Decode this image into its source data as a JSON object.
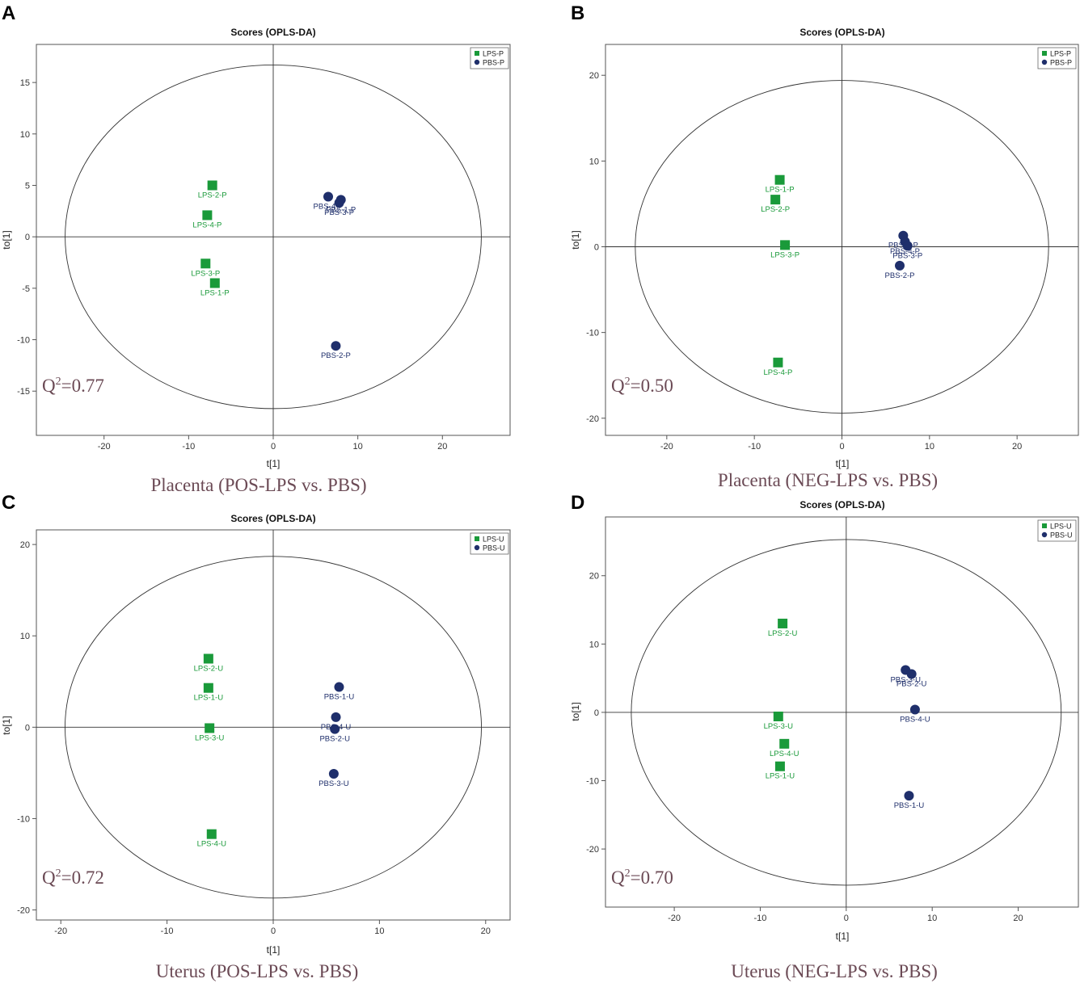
{
  "chart_data": [
    {
      "panel_letter": "A",
      "type": "scatter",
      "title": "Scores (OPLS-DA)",
      "xlabel": "t[1]",
      "ylabel": "to[1]",
      "xlim": [
        -28,
        28
      ],
      "ylim": [
        -19.3,
        18.7
      ],
      "xticks": [
        "-20",
        "-10",
        "0",
        "10",
        "20"
      ],
      "xtick_values": [
        -20,
        -10,
        0,
        10,
        20
      ],
      "yticks": [
        "-15",
        "-10",
        "-5",
        "0",
        "5",
        "10",
        "15"
      ],
      "ytick_values": [
        -15,
        -10,
        -5,
        0,
        5,
        10,
        15
      ],
      "ellipse": {
        "rx": 24.6,
        "ry": 16.7
      },
      "q2_prefix": "Q",
      "q2_sup": "2",
      "q2_value": "=0.77",
      "caption": "Placenta (POS-LPS vs. PBS)",
      "legend_position": "top-right",
      "series": [
        {
          "name": "LPS-P",
          "marker": "square",
          "color": "#1a9a3a",
          "points": [
            {
              "label": "LPS-2-P",
              "x": -7.2,
              "y": 5.0
            },
            {
              "label": "LPS-4-P",
              "x": -7.8,
              "y": 2.1
            },
            {
              "label": "LPS-3-P",
              "x": -8.0,
              "y": -2.6
            },
            {
              "label": "LPS-1-P",
              "x": -6.9,
              "y": -4.5
            }
          ]
        },
        {
          "name": "PBS-P",
          "marker": "circle",
          "color": "#1f2f6b",
          "points": [
            {
              "label": "PBS-4-P",
              "x": 6.5,
              "y": 3.9
            },
            {
              "label": "PBS-1-P",
              "x": 8.0,
              "y": 3.6
            },
            {
              "label": "PBS-3-P",
              "x": 7.8,
              "y": 3.3
            },
            {
              "label": "PBS-2-P",
              "x": 7.4,
              "y": -10.6
            }
          ]
        }
      ]
    },
    {
      "panel_letter": "B",
      "type": "scatter",
      "title": "Scores (OPLS-DA)",
      "xlabel": "t[1]",
      "ylabel": "to[1]",
      "xlim": [
        -27,
        27
      ],
      "ylim": [
        -22.0,
        23.6
      ],
      "xticks": [
        "-20",
        "-10",
        "0",
        "10",
        "20"
      ],
      "xtick_values": [
        -20,
        -10,
        0,
        10,
        20
      ],
      "yticks": [
        "-20",
        "-10",
        "0",
        "10",
        "20"
      ],
      "ytick_values": [
        -20,
        -10,
        0,
        10,
        20
      ],
      "ellipse": {
        "rx": 23.6,
        "ry": 19.4
      },
      "q2_prefix": "Q",
      "q2_sup": "2",
      "q2_value": "=0.50",
      "caption": "Placenta (NEG-LPS vs. PBS)",
      "legend_position": "top-right",
      "series": [
        {
          "name": "LPS-P",
          "marker": "square",
          "color": "#1a9a3a",
          "points": [
            {
              "label": "LPS-1-P",
              "x": -7.1,
              "y": 7.8
            },
            {
              "label": "LPS-2-P",
              "x": -7.6,
              "y": 5.5
            },
            {
              "label": "LPS-3-P",
              "x": -6.5,
              "y": 0.2
            },
            {
              "label": "LPS-4-P",
              "x": -7.3,
              "y": -13.5
            }
          ]
        },
        {
          "name": "PBS-P",
          "marker": "circle",
          "color": "#1f2f6b",
          "points": [
            {
              "label": "PBS-1-P",
              "x": 7.0,
              "y": 1.3
            },
            {
              "label": "PBS-4-P",
              "x": 7.2,
              "y": 0.6
            },
            {
              "label": "PBS-3-P",
              "x": 7.5,
              "y": 0.1
            },
            {
              "label": "PBS-2-P",
              "x": 6.6,
              "y": -2.2
            }
          ]
        }
      ]
    },
    {
      "panel_letter": "C",
      "type": "scatter",
      "title": "Scores (OPLS-DA)",
      "xlabel": "t[1]",
      "ylabel": "to[1]",
      "xlim": [
        -22.3,
        22.3
      ],
      "ylim": [
        -21.1,
        21.6
      ],
      "xticks": [
        "-20",
        "-10",
        "0",
        "10",
        "20"
      ],
      "xtick_values": [
        -20,
        -10,
        0,
        10,
        20
      ],
      "yticks": [
        "-20",
        "-10",
        "0",
        "10",
        "20"
      ],
      "ytick_values": [
        -20,
        -10,
        0,
        10,
        20
      ],
      "ellipse": {
        "rx": 19.6,
        "ry": 18.7
      },
      "q2_prefix": "Q",
      "q2_sup": "2",
      "q2_value": "=0.72",
      "caption": "Uterus (POS-LPS vs. PBS)",
      "legend_position": "top-right",
      "series": [
        {
          "name": "LPS-U",
          "marker": "square",
          "color": "#1a9a3a",
          "points": [
            {
              "label": "LPS-2-U",
              "x": -6.1,
              "y": 7.5
            },
            {
              "label": "LPS-1-U",
              "x": -6.1,
              "y": 4.3
            },
            {
              "label": "LPS-3-U",
              "x": -6.0,
              "y": -0.1
            },
            {
              "label": "LPS-4-U",
              "x": -5.8,
              "y": -11.7
            }
          ]
        },
        {
          "name": "PBS-U",
          "marker": "circle",
          "color": "#1f2f6b",
          "points": [
            {
              "label": "PBS-1-U",
              "x": 6.2,
              "y": 4.4
            },
            {
              "label": "PBS-4-U",
              "x": 5.9,
              "y": 1.1
            },
            {
              "label": "PBS-2-U",
              "x": 5.8,
              "y": -0.2
            },
            {
              "label": "PBS-3-U",
              "x": 5.7,
              "y": -5.1
            }
          ]
        }
      ]
    },
    {
      "panel_letter": "D",
      "type": "scatter",
      "title": "Scores (OPLS-DA)",
      "xlabel": "t[1]",
      "ylabel": "to[1]",
      "xlim": [
        -28.0,
        27.0
      ],
      "ylim": [
        -28.5,
        28.6
      ],
      "xticks": [
        "-20",
        "-10",
        "0",
        "10",
        "20"
      ],
      "xtick_values": [
        -20,
        -10,
        0,
        10,
        20
      ],
      "yticks": [
        "-20",
        "-10",
        "0",
        "10",
        "20"
      ],
      "ytick_values": [
        -20,
        -10,
        0,
        10,
        20
      ],
      "ellipse": {
        "rx": 25.0,
        "ry": 25.3
      },
      "q2_prefix": "Q",
      "q2_sup": "2",
      "q2_value": "=0.70",
      "caption": "Uterus (NEG-LPS vs. PBS)",
      "legend_position": "top-right",
      "series": [
        {
          "name": "LPS-U",
          "marker": "square",
          "color": "#1a9a3a",
          "points": [
            {
              "label": "LPS-2-U",
              "x": -7.4,
              "y": 13.0
            },
            {
              "label": "LPS-3-U",
              "x": -7.9,
              "y": -0.6
            },
            {
              "label": "LPS-4-U",
              "x": -7.2,
              "y": -4.6
            },
            {
              "label": "LPS-1-U",
              "x": -7.7,
              "y": -7.9
            }
          ]
        },
        {
          "name": "PBS-U",
          "marker": "circle",
          "color": "#1f2f6b",
          "points": [
            {
              "label": "PBS-3-U",
              "x": 6.9,
              "y": 6.2
            },
            {
              "label": "PBS-2-U",
              "x": 7.6,
              "y": 5.6
            },
            {
              "label": "PBS-4-U",
              "x": 8.0,
              "y": 0.4
            },
            {
              "label": "PBS-1-U",
              "x": 7.3,
              "y": -12.2
            }
          ]
        }
      ]
    }
  ]
}
